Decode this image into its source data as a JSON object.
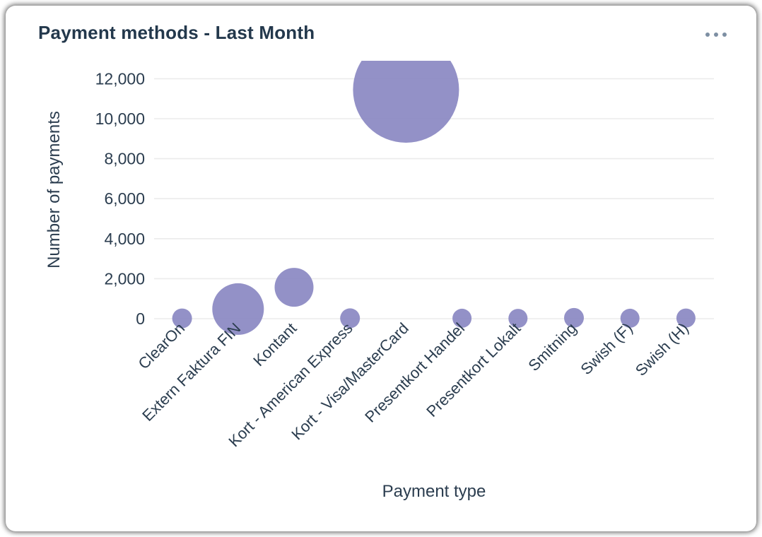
{
  "card": {
    "title": "Payment methods - Last Month",
    "menu": {
      "icon": "ellipsis-icon"
    }
  },
  "chart_data": {
    "type": "scatter",
    "subtype": "bubble",
    "title": "Payment methods - Last Month",
    "xlabel": "Payment type",
    "ylabel": "Number of payments",
    "categories": [
      "ClearOn",
      "Extern Faktura FIN",
      "Kontant",
      "Kort - American Express",
      "Kort - Visa/MasterCard",
      "Presentkort Handel",
      "Presentkort Lokalt",
      "Smitning",
      "Swish (F)",
      "Swish (H)"
    ],
    "values": [
      15,
      480,
      1570,
      20,
      11450,
      20,
      15,
      40,
      20,
      30
    ],
    "bubble_radius_px": [
      14,
      36.5,
      27.5,
      14,
      75,
      13.5,
      13.5,
      14,
      13.5,
      13.5
    ],
    "ylim": [
      0,
      13000
    ],
    "yticks": [
      0,
      2000,
      4000,
      6000,
      8000,
      10000,
      12000
    ],
    "grid": "horizontal",
    "legend": "none",
    "bubble_color": "#8D8BC4"
  },
  "colors": {
    "title_text": "#23384c",
    "axis_text": "#2b3d4f",
    "gridline": "#ebebeb",
    "bubble": "#8D8BC4",
    "menu_dots": "#7d8fa3",
    "card_bg": "#ffffff"
  }
}
